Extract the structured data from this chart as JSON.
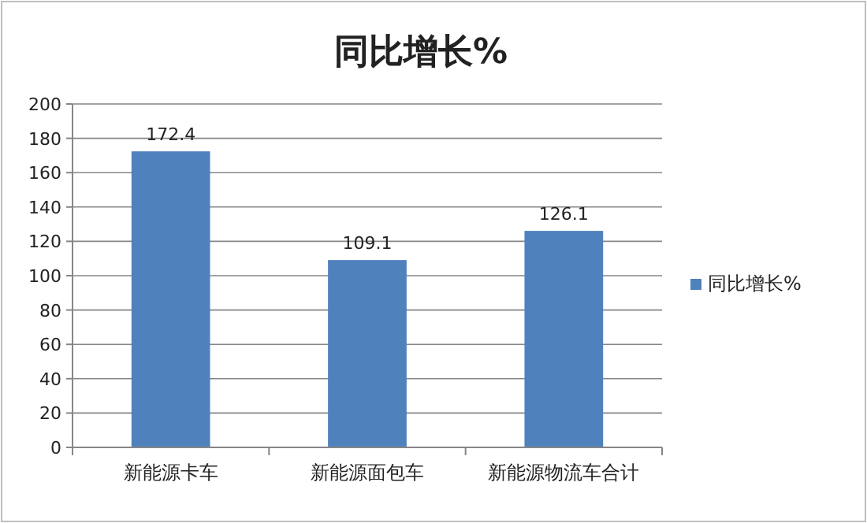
{
  "chart_data": {
    "type": "bar",
    "title": "同比增长%",
    "categories": [
      "新能源卡车",
      "新能源面包车",
      "新能源物流车合计"
    ],
    "series": [
      {
        "name": "同比增长%",
        "color": "#4f81bd",
        "values": [
          172.4,
          109.1,
          126.1
        ]
      }
    ],
    "ylim": [
      0,
      200
    ],
    "yticks": [
      0,
      20,
      40,
      60,
      80,
      100,
      120,
      140,
      160,
      180,
      200
    ],
    "grid": "y",
    "legend": "right",
    "data_labels": true
  }
}
